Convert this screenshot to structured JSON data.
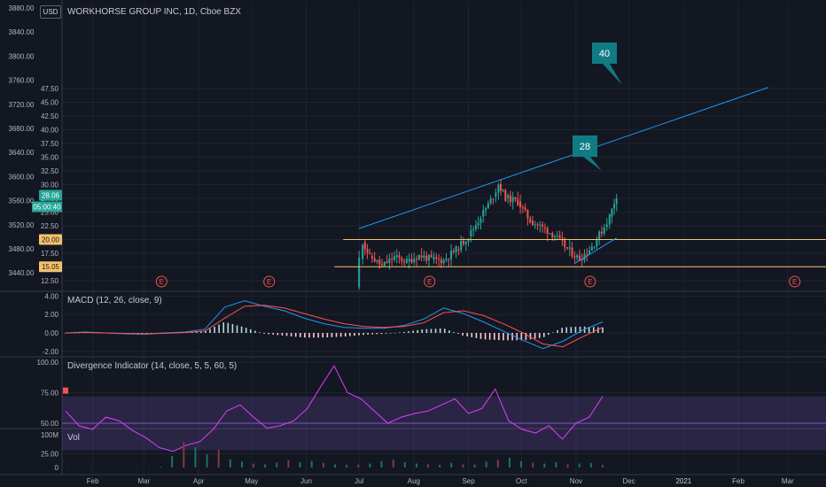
{
  "header": {
    "currency_button": "USD",
    "title": "WORKHORSE GROUP INC, 1D, Cboe BZX"
  },
  "panes": {
    "macd": "MACD (12, 26, close, 9)",
    "divergence": "Divergence Indicator (14, close, 5, 5, 60, 5)",
    "volume": "Vol"
  },
  "price_badges": {
    "last_price": "28.06",
    "countdown": "05:00:40",
    "support_high": "20.00",
    "support_low": "15.05"
  },
  "annotations": {
    "callout_upper": "40",
    "callout_lower": "28"
  },
  "earnings_marker": "E",
  "colors": {
    "background": "#131722",
    "up": "#26a69a",
    "down": "#ef5350",
    "trendline": "#2196f3",
    "support": "#f5c26b",
    "macd": "#2196f3",
    "signal": "#ff5252",
    "divergence": "#e040fb",
    "callout": "#117b83"
  },
  "chart_data": [
    {
      "type": "candlestick",
      "title": "WORKHORSE GROUP INC, 1D, Cboe BZX",
      "x_ticks": [
        "Feb",
        "Mar",
        "Apr",
        "May",
        "Jun",
        "Jul",
        "Aug",
        "Sep",
        "Oct",
        "Nov",
        "Dec",
        "2021",
        "Feb",
        "Mar"
      ],
      "y_ticks_price": [
        "47.50",
        "45.00",
        "42.50",
        "40.00",
        "37.50",
        "35.00",
        "32.50",
        "30.00",
        "27.50",
        "25.00",
        "22.50",
        "20.00",
        "17.50",
        "15.00",
        "12.50"
      ],
      "y_ticks_secondary": [
        "3880.00",
        "3840.00",
        "3800.00",
        "3760.00",
        "3720.00",
        "3680.00",
        "3640.00",
        "3600.00",
        "3560.00",
        "3520.00",
        "3480.00",
        "3440.00"
      ],
      "close_series": [
        {
          "date": "2020-06-29",
          "close": 11.3
        },
        {
          "date": "2020-07-01",
          "close": 16.5
        },
        {
          "date": "2020-07-03",
          "close": 19.5
        },
        {
          "date": "2020-07-07",
          "close": 17.0
        },
        {
          "date": "2020-07-14",
          "close": 15.2
        },
        {
          "date": "2020-07-21",
          "close": 16.8
        },
        {
          "date": "2020-07-28",
          "close": 16.0
        },
        {
          "date": "2020-08-04",
          "close": 17.1
        },
        {
          "date": "2020-08-11",
          "close": 16.4
        },
        {
          "date": "2020-08-18",
          "close": 16.2
        },
        {
          "date": "2020-08-25",
          "close": 18.2
        },
        {
          "date": "2020-09-01",
          "close": 20.6
        },
        {
          "date": "2020-09-08",
          "close": 24.2
        },
        {
          "date": "2020-09-15",
          "close": 27.8
        },
        {
          "date": "2020-09-18",
          "close": 30.1
        },
        {
          "date": "2020-09-22",
          "close": 27.6
        },
        {
          "date": "2020-09-29",
          "close": 26.9
        },
        {
          "date": "2020-10-06",
          "close": 23.4
        },
        {
          "date": "2020-10-13",
          "close": 22.2
        },
        {
          "date": "2020-10-20",
          "close": 20.7
        },
        {
          "date": "2020-10-27",
          "close": 18.3
        },
        {
          "date": "2020-11-03",
          "close": 16.4
        },
        {
          "date": "2020-11-10",
          "close": 18.7
        },
        {
          "date": "2020-11-17",
          "close": 22.3
        },
        {
          "date": "2020-11-20",
          "close": 24.2
        },
        {
          "date": "2020-11-24",
          "close": 28.06
        }
      ],
      "support_lines": [
        20.0,
        15.05
      ],
      "trendline": {
        "from": {
          "date": "2020-07-01",
          "price": 22.0
        },
        "to": {
          "date": "2021-02-18",
          "price": 47.7
        }
      },
      "callouts": [
        {
          "text": "40"
        },
        {
          "text": "28"
        }
      ],
      "earnings_markers": [
        "E",
        "E",
        "E",
        "E",
        "E"
      ]
    },
    {
      "type": "line",
      "title": "MACD (12, 26, close, 9)",
      "y_ticks": [
        "4.00",
        "2.00",
        "0.00",
        "-2.00"
      ],
      "series": [
        {
          "values": [
            0.0,
            0.1,
            0.0,
            -0.1,
            -0.15,
            0.0,
            0.1,
            0.4,
            2.8,
            3.5,
            2.9,
            2.4,
            1.6,
            1.0,
            0.6,
            0.5,
            0.5,
            0.8,
            1.5,
            2.7,
            2.1,
            1.2,
            0.2,
            -0.8,
            -1.7,
            -0.9,
            0.3,
            1.2
          ]
        },
        {
          "values": [
            0.0,
            0.05,
            0.0,
            -0.05,
            -0.1,
            -0.05,
            0.05,
            0.2,
            1.6,
            2.9,
            3.0,
            2.7,
            2.1,
            1.5,
            1.0,
            0.7,
            0.6,
            0.7,
            1.1,
            2.2,
            2.4,
            1.9,
            1.0,
            0.0,
            -1.2,
            -1.5,
            -0.4,
            0.6
          ]
        }
      ]
    },
    {
      "type": "line",
      "title": "Divergence Indicator (14, close, 5, 5, 60, 5)",
      "y_ticks": [
        "100.00",
        "75.00",
        "50.00",
        "25.00"
      ],
      "series": [
        {
          "values": [
            60,
            48,
            45,
            55,
            52,
            44,
            38,
            30,
            27,
            32,
            35,
            45,
            60,
            65,
            55,
            46,
            48,
            52,
            62,
            80,
            97,
            75,
            70,
            60,
            50,
            55,
            58,
            60,
            65,
            70,
            58,
            62,
            78,
            52,
            45,
            42,
            48,
            37,
            50,
            55,
            72
          ]
        }
      ]
    },
    {
      "type": "bar",
      "title": "Vol",
      "y_ticks": [
        "100M",
        "0"
      ],
      "values": [
        1,
        1,
        1,
        1,
        1,
        1,
        1,
        1,
        2,
        35,
        78,
        62,
        40,
        55,
        25,
        18,
        12,
        10,
        15,
        22,
        16,
        20,
        14,
        10,
        8,
        9,
        12,
        20,
        24,
        16,
        12,
        10,
        8,
        14,
        10,
        9,
        18,
        24,
        30,
        20,
        15,
        12,
        16,
        10,
        12,
        14,
        8
      ]
    }
  ]
}
